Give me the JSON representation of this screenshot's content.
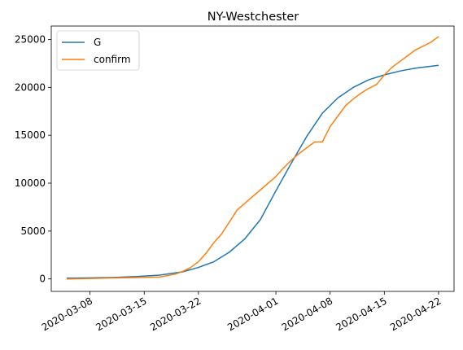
{
  "chart_data": {
    "type": "line",
    "title": "NY-Westchester",
    "xlabel": "",
    "ylabel": "",
    "x_type": "date",
    "xlim": [
      "2020-03-03",
      "2020-04-24"
    ],
    "ylim": [
      -1300,
      26400
    ],
    "x_ticks": [
      "2020-03-08",
      "2020-03-15",
      "2020-03-22",
      "2020-04-01",
      "2020-04-08",
      "2020-04-15",
      "2020-04-22"
    ],
    "y_ticks": [
      0,
      5000,
      10000,
      15000,
      20000,
      25000
    ],
    "grid": false,
    "legend_position": "top-left",
    "series": [
      {
        "name": "G",
        "color": "#1f77b4",
        "points": [
          [
            "2020-03-05",
            80
          ],
          [
            "2020-03-08",
            110
          ],
          [
            "2020-03-11",
            160
          ],
          [
            "2020-03-14",
            250
          ],
          [
            "2020-03-17",
            400
          ],
          [
            "2020-03-20",
            750
          ],
          [
            "2020-03-22",
            1200
          ],
          [
            "2020-03-24",
            1800
          ],
          [
            "2020-03-26",
            2800
          ],
          [
            "2020-03-28",
            4200
          ],
          [
            "2020-03-30",
            6200
          ],
          [
            "2020-04-01",
            9200
          ],
          [
            "2020-04-03",
            12100
          ],
          [
            "2020-04-05",
            14900
          ],
          [
            "2020-04-07",
            17300
          ],
          [
            "2020-04-09",
            18900
          ],
          [
            "2020-04-11",
            20000
          ],
          [
            "2020-04-13",
            20800
          ],
          [
            "2020-04-15",
            21300
          ],
          [
            "2020-04-17",
            21700
          ],
          [
            "2020-04-19",
            22000
          ],
          [
            "2020-04-22",
            22300
          ]
        ]
      },
      {
        "name": "confirm",
        "color": "#ff7f0e",
        "points": [
          [
            "2020-03-05",
            0
          ],
          [
            "2020-03-08",
            50
          ],
          [
            "2020-03-11",
            100
          ],
          [
            "2020-03-14",
            150
          ],
          [
            "2020-03-17",
            200
          ],
          [
            "2020-03-19",
            500
          ],
          [
            "2020-03-20",
            800
          ],
          [
            "2020-03-21",
            1200
          ],
          [
            "2020-03-22",
            1800
          ],
          [
            "2020-03-23",
            2700
          ],
          [
            "2020-03-24",
            3800
          ],
          [
            "2020-03-25",
            4700
          ],
          [
            "2020-03-27",
            7200
          ],
          [
            "2020-03-28",
            7900
          ],
          [
            "2020-03-29",
            8600
          ],
          [
            "2020-03-30",
            9300
          ],
          [
            "2020-04-01",
            10700
          ],
          [
            "2020-04-02",
            11600
          ],
          [
            "2020-04-03",
            12400
          ],
          [
            "2020-04-04",
            13100
          ],
          [
            "2020-04-05",
            13700
          ],
          [
            "2020-04-06",
            14300
          ],
          [
            "2020-04-07",
            14300
          ],
          [
            "2020-04-08",
            15900
          ],
          [
            "2020-04-09",
            17000
          ],
          [
            "2020-04-10",
            18100
          ],
          [
            "2020-04-11",
            18800
          ],
          [
            "2020-04-12",
            19400
          ],
          [
            "2020-04-13",
            19900
          ],
          [
            "2020-04-14",
            20300
          ],
          [
            "2020-04-15",
            21300
          ],
          [
            "2020-04-16",
            22100
          ],
          [
            "2020-04-17",
            22700
          ],
          [
            "2020-04-18",
            23300
          ],
          [
            "2020-04-19",
            23900
          ],
          [
            "2020-04-20",
            24300
          ],
          [
            "2020-04-21",
            24700
          ],
          [
            "2020-04-22",
            25300
          ]
        ]
      }
    ]
  }
}
